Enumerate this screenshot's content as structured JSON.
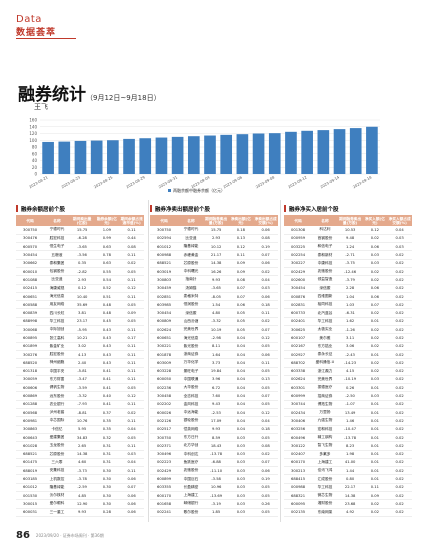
{
  "header": {
    "en": "Data",
    "zh": "数据荟萃"
  },
  "title": {
    "main": "融券统计",
    "sub": "（9月12日~9月18日）"
  },
  "author": "王飞",
  "footer": {
    "page": "86",
    "info": "2023/09/20 · 证券市场周刊 · 第36期"
  },
  "chart_data": {
    "type": "bar",
    "categories": [
      "2023-08-21",
      "2023-08-22",
      "2023-08-23",
      "2023-08-24",
      "2023-08-25",
      "2023-08-28",
      "2023-08-29",
      "2023-08-30",
      "2023-08-31",
      "2023-09-01",
      "2023-09-04",
      "2023-09-05",
      "2023-09-06",
      "2023-09-07",
      "2023-09-08",
      "2023-09-11",
      "2023-09-12",
      "2023-09-13",
      "2023-09-14",
      "2023-09-15",
      "2023-09-18"
    ],
    "tick_labels": [
      "2023-08-21",
      "2023-08-23",
      "2023-08-25",
      "2023-08-29",
      "2023-08-31",
      "2023-09-04",
      "2023-09-06",
      "2023-09-08",
      "2023-09-12",
      "2023-09-14",
      "2023-09-18"
    ],
    "series": [
      {
        "name": "两融余额中融券余额（亿元）",
        "values": [
          95,
          96,
          98,
          99,
          100,
          104,
          106,
          108,
          110,
          112,
          114,
          116,
          118,
          120,
          121,
          125,
          128,
          130,
          133,
          136,
          140
        ]
      }
    ],
    "ylim": [
      0,
      160
    ],
    "yticks": [
      0,
      20,
      40,
      60,
      80,
      100,
      120,
      140,
      160
    ],
    "color": "#3f7fbf"
  },
  "tables": [
    {
      "title": "融券余额居前个股",
      "headers": [
        "代码",
        "名称",
        "期间卖出量(亿股)",
        "融券余额(亿元)",
        "期间余额占流通市值(%)"
      ],
      "rows": [
        [
          "300750",
          "宁德时代",
          "15.75",
          "1.09",
          "0.11"
        ],
        [
          "300476",
          "胜宏科技",
          "-6.28",
          "0.99",
          "0.44"
        ],
        [
          "600570",
          "恒生电子",
          "-3.65",
          "0.63",
          "0.08"
        ],
        [
          "300454",
          "五粮液",
          "-3.56",
          "0.78",
          "0.11"
        ],
        [
          "300662",
          "泰和集团",
          "0.35",
          "0.63",
          "0.02"
        ],
        [
          "600010",
          "包钢股份",
          "-2.82",
          "0.55",
          "0.05"
        ],
        [
          "601088",
          "比亚迪",
          "2.93",
          "0.54",
          "0.11"
        ],
        [
          "002415",
          "海康威视",
          "0.12",
          "0.52",
          "0.12"
        ],
        [
          "600651",
          "海光信息",
          "10.40",
          "0.51",
          "0.11"
        ],
        [
          "600588",
          "用友网络",
          "35.69",
          "0.48",
          "0.05"
        ],
        [
          "600839",
          "四川长虹",
          "3.81",
          "0.48",
          "0.09"
        ],
        [
          "688998",
          "华工科技",
          "23.17",
          "0.45",
          "0.05"
        ],
        [
          "300068",
          "中际旭创",
          "-5.95",
          "0.43",
          "0.11"
        ],
        [
          "600895",
          "张江高科",
          "10.21",
          "0.43",
          "0.17"
        ],
        [
          "601899",
          "紫金矿业",
          "3.02",
          "0.43",
          "0.11"
        ],
        [
          "300276",
          "胜宏股份",
          "4.13",
          "0.43",
          "0.11"
        ],
        [
          "688520",
          "神州细胞",
          "2.40",
          "0.43",
          "0.11"
        ],
        [
          "601318",
          "中国平安",
          "-5.81",
          "0.41",
          "0.11"
        ],
        [
          "300059",
          "东方财富",
          "-3.47",
          "0.41",
          "0.11"
        ],
        [
          "600606",
          "健帆生物",
          "-3.59",
          "0.41",
          "0.05"
        ],
        [
          "600869",
          "远东股份",
          "-3.32",
          "0.40",
          "0.12"
        ],
        [
          "601288",
          "农业银行",
          "-7.93",
          "0.41",
          "0.11"
        ],
        [
          "600568",
          "泸州老窖",
          "-8.81",
          "0.37",
          "0.02"
        ],
        [
          "600981",
          "中芯国际",
          "10.76",
          "0.35",
          "0.11"
        ],
        [
          "300863",
          "卡倍亿",
          "5.95",
          "0.35",
          "0.04"
        ],
        [
          "600643",
          "爱建集团",
          "34.83",
          "0.32",
          "0.05"
        ],
        [
          "601028",
          "玉龙股份",
          "2.65",
          "0.31",
          "0.11"
        ],
        [
          "688521",
          "芯原股份",
          "14.38",
          "0.31",
          "0.03"
        ],
        [
          "601475",
          "三六零",
          "4.60",
          "0.31",
          "0.04"
        ],
        [
          "688019",
          "安集科技",
          "-3.73",
          "0.30",
          "0.11"
        ],
        [
          "603185",
          "上机数控",
          "-3.78",
          "0.30",
          "0.06"
        ],
        [
          "601012",
          "隆基绿能",
          "-2.59",
          "0.30",
          "0.07"
        ],
        [
          "001530",
          "沃尔核材",
          "4.85",
          "0.30",
          "0.06"
        ],
        [
          "300015",
          "爱尔眼科",
          "12.90",
          "0.30",
          "0.06"
        ],
        [
          "600031",
          "三一重工",
          "9.93",
          "0.28",
          "0.06"
        ]
      ]
    },
    {
      "title": "融券净卖出额居前个股",
      "headers": [
        "代码",
        "名称",
        "期间融券卖出量(万股)",
        "净卖出额(亿元)",
        "净卖出额占成交额(%)"
      ],
      "rows": [
        [
          "300750",
          "宁德时代",
          "15.75",
          "0.18",
          "0.06"
        ],
        [
          "002594",
          "比亚迪",
          "2.93",
          "0.13",
          "0.08"
        ],
        [
          "601012",
          "隆基绿能",
          "10.12",
          "0.12",
          "0.19"
        ],
        [
          "600988",
          "赤峰黄金",
          "21.17",
          "0.11",
          "0.07"
        ],
        [
          "688521",
          "芯原股份",
          "14.38",
          "0.09",
          "0.06"
        ],
        [
          "603019",
          "中科曙光",
          "16.26",
          "0.09",
          "0.02"
        ],
        [
          "300803",
          "指南针",
          "9.93",
          "0.08",
          "0.04"
        ],
        [
          "300459",
          "汤姆猫",
          "-3.65",
          "0.07",
          "0.03"
        ],
        [
          "002851",
          "麦格米特",
          "-8.05",
          "0.07",
          "0.06"
        ],
        [
          "603985",
          "恒润股份",
          "1.54",
          "0.06",
          "0.18"
        ],
        [
          "300454",
          "深信服",
          "4.80",
          "0.05",
          "0.11"
        ],
        [
          "600809",
          "山西汾酒",
          "-3.32",
          "0.05",
          "0.02"
        ],
        [
          "002624",
          "完美世界",
          "10.19",
          "0.05",
          "0.07"
        ],
        [
          "600651",
          "海光信息",
          "-2.98",
          "0.04",
          "0.12"
        ],
        [
          "300221",
          "紫光股份",
          "8.11",
          "0.04",
          "0.05"
        ],
        [
          "601878",
          "浙商证券",
          "1.64",
          "0.04",
          "0.06"
        ],
        [
          "603009",
          "万华化学",
          "3.73",
          "0.04",
          "0.11"
        ],
        [
          "603228",
          "景旺电子",
          "19.84",
          "0.04",
          "0.05"
        ],
        [
          "600050",
          "中国联通",
          "3.96",
          "0.04",
          "0.13"
        ],
        [
          "002236",
          "大华股份",
          "6.72",
          "0.04",
          "0.05"
        ],
        [
          "300458",
          "全志科技",
          "7.60",
          "0.04",
          "0.07"
        ],
        [
          "002202",
          "金风科技",
          "9.43",
          "0.04",
          "0.05"
        ],
        [
          "600026",
          "中远海能",
          "-2.53",
          "0.04",
          "0.12"
        ],
        [
          "002126",
          "银轮股份",
          "17.09",
          "0.04",
          "0.04"
        ],
        [
          "002517",
          "恺英网络",
          "9.93",
          "0.04",
          "0.18"
        ],
        [
          "300750",
          "东方日升",
          "8.59",
          "0.03",
          "0.05"
        ],
        [
          "002371",
          "北方华创",
          "18.43",
          "0.03",
          "0.08"
        ],
        [
          "300496",
          "中科创达",
          "-13.78",
          "0.03",
          "0.02"
        ],
        [
          "002223",
          "鱼跃医疗",
          "-6.88",
          "0.03",
          "0.07"
        ],
        [
          "002429",
          "兆驰股份",
          "-11.10",
          "0.03",
          "0.06"
        ],
        [
          "600899",
          "中国巨石",
          "-3.58",
          "0.03",
          "0.19"
        ],
        [
          "603355",
          "长盈精密",
          "10.96",
          "0.03",
          "0.05"
        ],
        [
          "600170",
          "上海建工",
          "-13.69",
          "0.03",
          "0.05"
        ],
        [
          "601658",
          "邮储银行",
          "-3.19",
          "0.03",
          "0.26"
        ],
        [
          "002241",
          "歌尔股份",
          "1.85",
          "0.03",
          "0.05"
        ]
      ]
    },
    {
      "title": "融券净买入居前个股",
      "headers": [
        "代码",
        "名称",
        "期间融券卖出量(万股)",
        "净买入额(亿元)",
        "净买入额占成交额(%)"
      ],
      "rows": [
        [
          "001308",
          "科达利",
          "10.53",
          "0.12",
          "0.04"
        ],
        [
          "000959",
          "首钢股份",
          "9.48",
          "0.02",
          "0.03"
        ],
        [
          "003225",
          "和信电子",
          "1.24",
          "0.06",
          "0.03"
        ],
        [
          "002254",
          "泰和新材",
          "-2.71",
          "0.03",
          "0.02"
        ],
        [
          "300227",
          "中康科技",
          "-3.75",
          "0.03",
          "0.02"
        ],
        [
          "002429",
          "兆驰股份",
          "-12.46",
          "0.02",
          "0.02"
        ],
        [
          "002600",
          "领益智造",
          "-3.79",
          "0.02",
          "0.02"
        ],
        [
          "300454",
          "深信服",
          "2.28",
          "0.06",
          "0.02"
        ],
        [
          "000876",
          "四维图新",
          "1.04",
          "0.06",
          "0.02"
        ],
        [
          "002831",
          "裕同科技",
          "1.03",
          "0.07",
          "0.02"
        ],
        [
          "600733",
          "北汽蓝谷",
          "-6.31",
          "0.02",
          "0.02"
        ],
        [
          "002401",
          "华工科技",
          "1.62",
          "0.01",
          "0.02"
        ],
        [
          "300625",
          "太极实业",
          "-1.26",
          "0.02",
          "0.02"
        ],
        [
          "600107",
          "美尔雅",
          "3.11",
          "0.02",
          "0.02"
        ],
        [
          "002167",
          "东方锆业",
          "3.06",
          "0.02",
          "0.02"
        ],
        [
          "002927",
          "泰永长征",
          "-2.43",
          "0.01",
          "0.02"
        ],
        [
          "688702",
          "盛科通信-U",
          "-14.23",
          "0.02",
          "0.02"
        ],
        [
          "603338",
          "浙江鼎力",
          "4.15",
          "0.02",
          "0.02"
        ],
        [
          "002624",
          "完美世界",
          "-10.19",
          "0.03",
          "0.02"
        ],
        [
          "603301",
          "振德医疗",
          "0.26",
          "0.01",
          "0.02"
        ],
        [
          "600999",
          "招商证券",
          "-2.50",
          "0.03",
          "0.02"
        ],
        [
          "300744",
          "博拓生物",
          "-1.07",
          "0.01",
          "0.02"
        ],
        [
          "002434",
          "万里扬",
          "13.49",
          "0.01",
          "0.02"
        ],
        [
          "300406",
          "九强生物",
          "1.46",
          "0.01",
          "0.02"
        ],
        [
          "603256",
          "宏和科技",
          "-10.47",
          "0.01",
          "0.02"
        ],
        [
          "600496",
          "精工钢构",
          "-13.78",
          "0.01",
          "0.02"
        ],
        [
          "300122",
          "智飞生物",
          "8.23",
          "0.01",
          "0.02"
        ],
        [
          "002407",
          "多氟多",
          "1.98",
          "0.01",
          "0.02"
        ],
        [
          "600170",
          "上海建工",
          "41.00",
          "0.01",
          "0.02"
        ],
        [
          "300213",
          "佳讯飞鸿",
          "1.44",
          "0.01",
          "0.02"
        ],
        [
          "688415",
          "汇成股份",
          "0.80",
          "0.01",
          "0.02"
        ],
        [
          "000988",
          "华工科技",
          "22.17",
          "0.11",
          "0.02"
        ],
        [
          "688321",
          "微芯生物",
          "14.38",
          "0.09",
          "0.02"
        ],
        [
          "600095",
          "湘财股份",
          "23.68",
          "0.02",
          "0.02"
        ],
        [
          "002135",
          "东南网架",
          "4.92",
          "0.02",
          "0.02"
        ]
      ]
    }
  ]
}
